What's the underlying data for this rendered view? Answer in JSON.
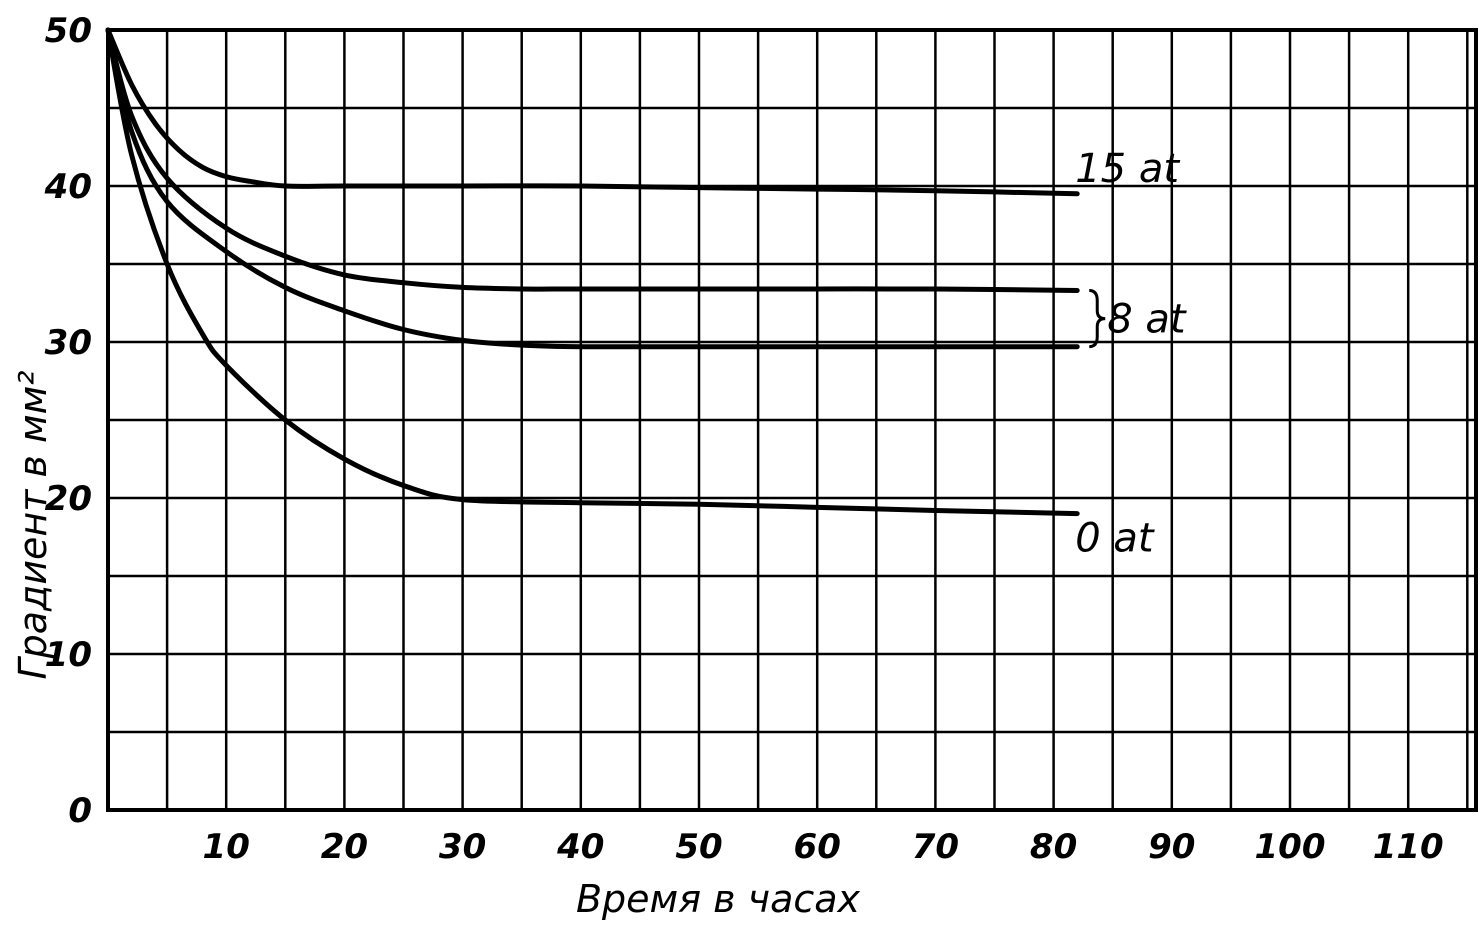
{
  "chart_data": {
    "type": "line",
    "title": "",
    "xlabel": "Время в часах",
    "ylabel": "Градиент в мм²",
    "xlim": [
      0,
      115
    ],
    "ylim": [
      0,
      50
    ],
    "x_ticks": [
      10,
      20,
      30,
      40,
      50,
      60,
      70,
      80,
      90,
      100,
      110
    ],
    "y_ticks": [
      0,
      10,
      20,
      30,
      40,
      50
    ],
    "grid": true,
    "series": [
      {
        "name": "15 at",
        "x": [
          0,
          2,
          4,
          6,
          8,
          10,
          12,
          15,
          20,
          30,
          40,
          50,
          60,
          70,
          82
        ],
        "y": [
          50,
          46.5,
          44,
          42.3,
          41.2,
          40.6,
          40.3,
          40,
          40,
          40,
          40,
          39.9,
          39.8,
          39.7,
          39.5
        ]
      },
      {
        "name": "8 at",
        "x": [
          0,
          2,
          5,
          10,
          15,
          20,
          25,
          30,
          35,
          40,
          50,
          60,
          70,
          82
        ],
        "y": [
          50,
          44.5,
          40.5,
          37.3,
          35.5,
          34.3,
          33.8,
          33.5,
          33.4,
          33.4,
          33.4,
          33.4,
          33.4,
          33.3
        ]
      },
      {
        "name": "8 at",
        "x": [
          0,
          2,
          5,
          10,
          15,
          20,
          25,
          30,
          35,
          40,
          50,
          60,
          70,
          82
        ],
        "y": [
          50,
          43.5,
          39,
          35.8,
          33.5,
          32,
          30.8,
          30.1,
          29.8,
          29.7,
          29.7,
          29.7,
          29.7,
          29.7
        ]
      },
      {
        "name": "0 at",
        "x": [
          0,
          2,
          5,
          8,
          10,
          15,
          20,
          25,
          30,
          40,
          50,
          60,
          70,
          82
        ],
        "y": [
          50,
          42,
          35,
          30.5,
          28.5,
          25,
          22.5,
          20.8,
          19.9,
          19.7,
          19.6,
          19.4,
          19.2,
          19
        ]
      }
    ],
    "series_labels": [
      "15 at",
      "8 at",
      "0 at"
    ]
  }
}
